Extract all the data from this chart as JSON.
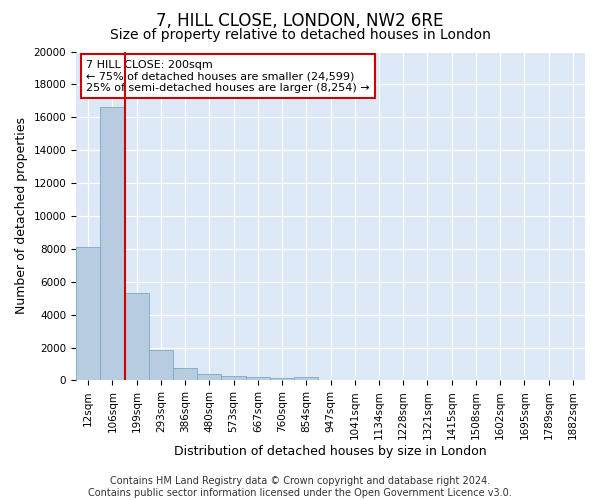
{
  "title": "7, HILL CLOSE, LONDON, NW2 6RE",
  "subtitle": "Size of property relative to detached houses in London",
  "xlabel": "Distribution of detached houses by size in London",
  "ylabel": "Number of detached properties",
  "footer_line1": "Contains HM Land Registry data © Crown copyright and database right 2024.",
  "footer_line2": "Contains public sector information licensed under the Open Government Licence v3.0.",
  "annotation_line1": "7 HILL CLOSE: 200sqm",
  "annotation_line2": "← 75% of detached houses are smaller (24,599)",
  "annotation_line3": "25% of semi-detached houses are larger (8,254) →",
  "bar_color": "#b8ccdf",
  "bar_edge_color": "#7aaac8",
  "vline_color": "#cc0000",
  "vline_x_index": 2,
  "categories": [
    "12sqm",
    "106sqm",
    "199sqm",
    "293sqm",
    "386sqm",
    "480sqm",
    "573sqm",
    "667sqm",
    "760sqm",
    "854sqm",
    "947sqm",
    "1041sqm",
    "1134sqm",
    "1228sqm",
    "1321sqm",
    "1415sqm",
    "1508sqm",
    "1602sqm",
    "1695sqm",
    "1789sqm",
    "1882sqm"
  ],
  "values": [
    8100,
    16600,
    5300,
    1850,
    750,
    380,
    270,
    200,
    160,
    220,
    0,
    0,
    0,
    0,
    0,
    0,
    0,
    0,
    0,
    0,
    0
  ],
  "ylim": [
    0,
    20000
  ],
  "yticks": [
    0,
    2000,
    4000,
    6000,
    8000,
    10000,
    12000,
    14000,
    16000,
    18000,
    20000
  ],
  "background_color": "#dce8f5",
  "fig_background_color": "#ffffff",
  "grid_color": "#ffffff",
  "title_fontsize": 12,
  "subtitle_fontsize": 10,
  "axis_label_fontsize": 9,
  "tick_fontsize": 7.5,
  "annotation_fontsize": 8,
  "footer_fontsize": 7
}
